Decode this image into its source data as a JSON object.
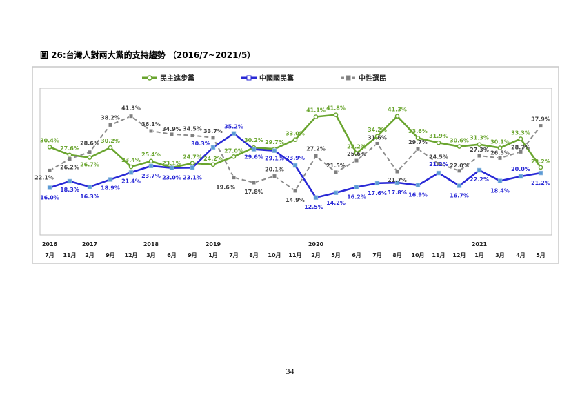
{
  "page": {
    "figure_title": "圖 26:台灣人對兩大黨的支持趨勢 （2016/7~2021/5）",
    "page_number": "34"
  },
  "chart_data": {
    "type": "line",
    "title": "圖 26:台灣人對兩大黨的支持趨勢 （2016/7~2021/5）",
    "xlabel": "",
    "ylabel": "",
    "grid": false,
    "legend_position": "top",
    "years": [
      {
        "label": "2016",
        "index": 0
      },
      {
        "label": "2017",
        "index": 2
      },
      {
        "label": "2018",
        "index": 5
      },
      {
        "label": "2019",
        "index": 8
      },
      {
        "label": "2020",
        "index": 13
      },
      {
        "label": "2021",
        "index": 21
      }
    ],
    "categories": [
      "7月",
      "11月",
      "2月",
      "9月",
      "12月",
      "3月",
      "6月",
      "9月",
      "1月",
      "7月",
      "8月",
      "10月",
      "11月",
      "2月",
      "5月",
      "6月",
      "7月",
      "8月",
      "10月",
      "11月",
      "12月",
      "1月",
      "3月",
      "4月",
      "5月"
    ],
    "series": [
      {
        "name": "民主進步黨",
        "color": "#6aa52f",
        "style": "solid",
        "values": [
          30.4,
          27.6,
          26.7,
          30.2,
          23.4,
          25.4,
          23.1,
          24.7,
          24.2,
          27.0,
          30.2,
          29.7,
          33.0,
          41.1,
          41.8,
          28.2,
          34.2,
          41.3,
          33.6,
          31.9,
          30.6,
          31.3,
          30.1,
          33.3,
          23.2
        ],
        "labels": [
          "30.4%",
          "27.6%",
          "26.7%",
          "30.2%",
          "23.4%",
          "25.4%",
          "23.1%",
          "24.7%",
          "24.2%",
          "27.0%",
          "30.2%",
          "29.7%",
          "33.0%",
          "41.1%",
          "41.8%",
          "28.2%",
          "34.2%",
          "41.3%",
          "33.6%",
          "31.9%",
          "30.6%",
          "31.3%",
          "30.1%",
          "33.3%",
          "23.2%"
        ]
      },
      {
        "name": "中國國民黨",
        "color": "#2929d6",
        "style": "solid",
        "values": [
          16.0,
          18.3,
          16.3,
          18.9,
          21.4,
          23.7,
          23.0,
          23.1,
          30.3,
          35.2,
          29.6,
          29.1,
          23.9,
          12.5,
          14.2,
          16.2,
          17.6,
          17.8,
          16.9,
          21.2,
          16.7,
          22.2,
          18.4,
          20.0,
          21.2
        ],
        "labels": [
          "16.0%",
          "18.3%",
          "16.3%",
          "18.9%",
          "21.4%",
          "23.7%",
          "23.0%",
          "23.1%",
          "30.3%",
          "35.2%",
          "29.6%",
          "29.1%",
          "23.9%",
          "12.5%",
          "14.2%",
          "16.2%",
          "17.6%",
          "17.8%",
          "16.9%",
          "21.2%",
          "16.7%",
          "22.2%",
          "18.4%",
          "20.0%",
          "21.2%"
        ]
      },
      {
        "name": "中性選民",
        "color": "#8c8c8c",
        "style": "dashed",
        "values": [
          22.1,
          26.2,
          28.6,
          38.2,
          41.3,
          36.1,
          34.9,
          34.5,
          33.7,
          19.6,
          17.8,
          20.1,
          14.9,
          27.2,
          21.5,
          25.6,
          31.6,
          21.7,
          29.7,
          24.5,
          22.0,
          27.3,
          26.5,
          28.7,
          37.9
        ],
        "labels": [
          "22.1%",
          "26.2%",
          "28.6%",
          "38.2%",
          "41.3%",
          "36.1%",
          "34.9%",
          "34.5%",
          "33.7%",
          "19.6%",
          "17.8%",
          "20.1%",
          "14.9%",
          "27.2%",
          "21.5%",
          "25.6%",
          "31.6%",
          "21.7%",
          "29.7%",
          "24.5%",
          "22.0%",
          "27.3%",
          "26.5%",
          "28.7%",
          "37.9%"
        ]
      }
    ]
  }
}
